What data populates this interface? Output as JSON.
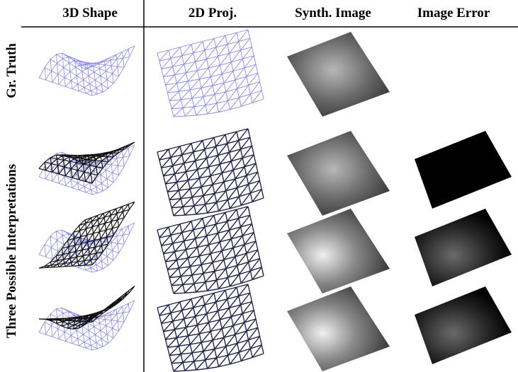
{
  "header": {
    "columns": [
      "3D Shape",
      "2D Proj.",
      "Synth. Image",
      "Image Error"
    ]
  },
  "rows": [
    {
      "label": "Gr. Truth"
    },
    {
      "label": "Three Possible Interpretations"
    }
  ]
}
